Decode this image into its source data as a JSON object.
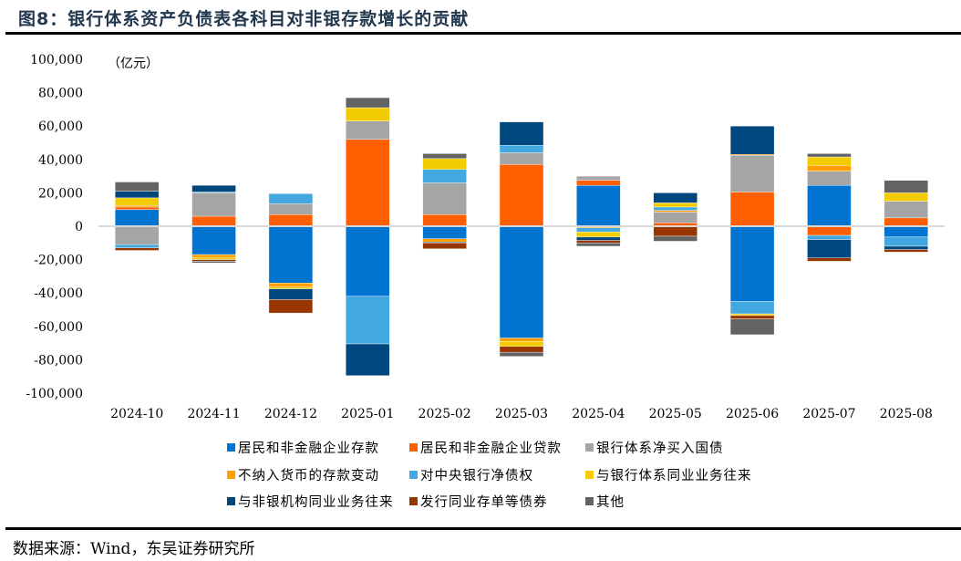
{
  "title": "图8：银行体系资产负债表各科目对非银存款增长的贡献",
  "source": "数据来源：Wind，东吴证券研究所",
  "chart_data": {
    "type": "bar",
    "stacked": true,
    "unit_label": "（亿元）",
    "categories": [
      "2024-10",
      "2024-11",
      "2024-12",
      "2025-01",
      "2025-02",
      "2025-03",
      "2025-04",
      "2025-05",
      "2025-06",
      "2025-07",
      "2025-08"
    ],
    "ylim": [
      -100000,
      100000
    ],
    "y_ticks": [
      100000,
      80000,
      60000,
      40000,
      20000,
      0,
      -20000,
      -40000,
      -60000,
      -80000,
      -100000
    ],
    "y_tick_labels": [
      "100,000",
      "80,000",
      "60,000",
      "40,000",
      "20,000",
      "0",
      "-20,000",
      "-40,000",
      "-60,000",
      "-80,000",
      "-100,000"
    ],
    "legend_position": "bottom",
    "series": [
      {
        "name": "居民和非金融企业存款",
        "color": "#0074D0",
        "values": [
          10000,
          -17000,
          -34000,
          -42000,
          -7500,
          -67000,
          24500,
          0,
          -45000,
          24500,
          -6500
        ]
      },
      {
        "name": "居民和非金融企业贷款",
        "color": "#FF5F00",
        "values": [
          1500,
          6000,
          7000,
          52000,
          7000,
          37000,
          3000,
          2000,
          20500,
          -5500,
          5000
        ]
      },
      {
        "name": "银行体系净买入国债",
        "color": "#A5A5A5",
        "values": [
          -11000,
          14000,
          6500,
          11000,
          19000,
          7000,
          2500,
          6500,
          22000,
          8500,
          10000
        ]
      },
      {
        "name": "不纳入货币的存款变动",
        "color": "#FFA000",
        "values": [
          1000,
          -2000,
          -2500,
          0,
          -2000,
          -2000,
          -1000,
          1000,
          500,
          3500,
          0
        ]
      },
      {
        "name": "对中央银行净债权",
        "color": "#43A8E0",
        "values": [
          -2000,
          500,
          6000,
          -28500,
          8000,
          4500,
          -2500,
          2000,
          -7500,
          -2500,
          -5500
        ]
      },
      {
        "name": "与银行体系同业业务往来",
        "color": "#F2CC00",
        "values": [
          4500,
          -1000,
          -1000,
          8000,
          6500,
          -3000,
          -3000,
          2500,
          -1000,
          5000,
          5000
        ]
      },
      {
        "name": "与非银机构同业业务往来",
        "color": "#00477D",
        "values": [
          4000,
          4000,
          -6500,
          -19000,
          -500,
          14000,
          -2000,
          6000,
          17000,
          -11000,
          -2000
        ]
      },
      {
        "name": "发行同业存单等债券",
        "color": "#993600",
        "values": [
          -1500,
          -1000,
          -8000,
          0,
          -3500,
          -3500,
          -1500,
          -6000,
          -2000,
          -2000,
          -1500
        ]
      },
      {
        "name": "其他",
        "color": "#636363",
        "values": [
          5500,
          -1000,
          0,
          6000,
          3000,
          -2500,
          -2000,
          -3000,
          -9500,
          2000,
          7500
        ]
      }
    ]
  }
}
